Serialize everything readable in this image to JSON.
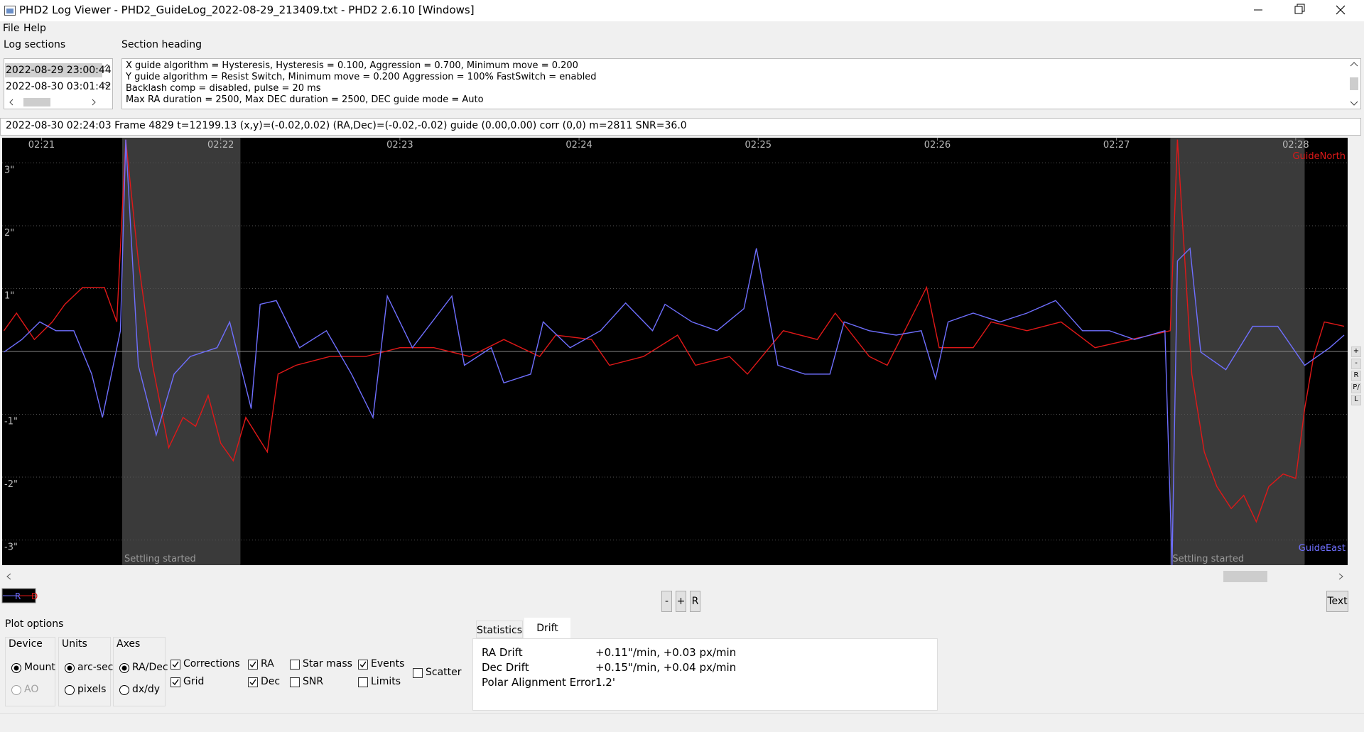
{
  "window": {
    "title": "PHD2 Log Viewer - PHD2_GuideLog_2022-08-29_213409.txt - PHD2 2.6.10 [Windows]"
  },
  "menu": [
    "File",
    "Help"
  ],
  "log_sections": {
    "label": "Log sections",
    "items": [
      "2022-08-29 23:00:44",
      "2022-08-30 03:01:42"
    ],
    "selected": 0
  },
  "section_heading": {
    "label": "Section heading",
    "lines": [
      "X guide algorithm = Hysteresis, Hysteresis = 0.100, Aggression = 0.700, Minimum move = 0.200",
      "Y guide algorithm = Resist Switch, Minimum move = 0.200 Aggression = 100% FastSwitch = enabled",
      "Backlash comp = disabled, pulse = 20 ms",
      "Max RA duration = 2500, Max DEC duration = 2500, DEC guide mode = Auto"
    ]
  },
  "status": "2022-08-30 02:24:03 Frame 4829 t=12199.13 (x,y)=(-0.02,0.02) (RA,Dec)=(-0.02,-0.02) guide (0.00,0.00) corr (0,0) m=2811 SNR=36.0",
  "chart_data": {
    "type": "line",
    "xlim": [
      -0.22,
      7.29
    ],
    "ylim": [
      -3.4,
      3.4
    ],
    "xticks": [
      {
        "value": 0,
        "label": "02:21"
      },
      {
        "value": 1,
        "label": "02:22"
      },
      {
        "value": 2,
        "label": "02:23"
      },
      {
        "value": 3,
        "label": "02:24"
      },
      {
        "value": 4,
        "label": "02:25"
      },
      {
        "value": 5,
        "label": "02:26"
      },
      {
        "value": 6,
        "label": "02:27"
      },
      {
        "value": 7,
        "label": "02:28"
      }
    ],
    "yticks": [
      {
        "value": 3,
        "label": "3\""
      },
      {
        "value": 2,
        "label": "2\""
      },
      {
        "value": 1,
        "label": "1\""
      },
      {
        "value": -1,
        "label": "-1\""
      },
      {
        "value": -2,
        "label": "-2\""
      },
      {
        "value": -3,
        "label": "-3\""
      }
    ],
    "grid": true,
    "corner_labels": {
      "top": "GuideNorth",
      "bottom": "GuideEast"
    },
    "regions": [
      {
        "start": 0.45,
        "end": 1.11,
        "label": "Settling started"
      },
      {
        "start": 6.3,
        "end": 7.05,
        "label": "Settling started"
      }
    ],
    "series": [
      {
        "name": "R",
        "color": "#6f6fff",
        "x": [
          -0.21,
          -0.11,
          -0.01,
          0.08,
          0.18,
          0.28,
          0.34,
          0.44,
          0.47,
          0.54,
          0.64,
          0.74,
          0.83,
          0.98,
          1.05,
          1.17,
          1.22,
          1.31,
          1.44,
          1.59,
          1.73,
          1.85,
          1.93,
          2.07,
          2.29,
          2.36,
          2.51,
          2.58,
          2.73,
          2.8,
          2.95,
          3.12,
          3.26,
          3.41,
          3.48,
          3.63,
          3.77,
          3.92,
          3.99,
          4.11,
          4.26,
          4.4,
          4.48,
          4.62,
          4.77,
          4.91,
          4.99,
          5.06,
          5.2,
          5.35,
          5.5,
          5.66,
          5.81,
          5.96,
          6.1,
          6.27,
          6.31,
          6.34,
          6.41,
          6.47,
          6.61,
          6.76,
          6.9,
          7.05,
          7.19,
          7.27
        ],
        "values": [
          -0.01,
          0.19,
          0.47,
          0.33,
          0.33,
          -0.36,
          -1.05,
          0.33,
          3.37,
          -0.22,
          -1.33,
          -0.36,
          -0.08,
          0.06,
          0.47,
          -0.91,
          0.75,
          0.81,
          0.06,
          0.33,
          -0.36,
          -1.05,
          0.88,
          0.06,
          0.88,
          -0.22,
          0.06,
          -0.5,
          -0.36,
          0.47,
          0.06,
          0.33,
          0.77,
          0.33,
          0.75,
          0.47,
          0.33,
          0.68,
          1.64,
          -0.22,
          -0.36,
          -0.36,
          0.47,
          0.33,
          0.26,
          0.33,
          -0.43,
          0.47,
          0.61,
          0.47,
          0.61,
          0.81,
          0.33,
          0.33,
          0.19,
          0.33,
          -3.4,
          1.44,
          1.64,
          -0.01,
          -0.29,
          0.4,
          0.4,
          -0.22,
          0.06,
          0.26
        ]
      },
      {
        "name": "D",
        "color": "#e01818",
        "x": [
          -0.21,
          -0.14,
          -0.04,
          0.06,
          0.13,
          0.23,
          0.35,
          0.42,
          0.47,
          0.54,
          0.62,
          0.71,
          0.79,
          0.86,
          0.93,
          1.0,
          1.07,
          1.14,
          1.26,
          1.32,
          1.42,
          1.61,
          1.81,
          2.0,
          2.19,
          2.39,
          2.58,
          2.78,
          2.87,
          3.07,
          3.17,
          3.36,
          3.55,
          3.65,
          3.84,
          3.94,
          4.14,
          4.33,
          4.43,
          4.62,
          4.72,
          4.94,
          5.01,
          5.2,
          5.3,
          5.5,
          5.69,
          5.88,
          6.08,
          6.3,
          6.34,
          6.42,
          6.49,
          6.56,
          6.64,
          6.71,
          6.78,
          6.85,
          6.93,
          7.0,
          7.05,
          7.1,
          7.16,
          7.27
        ],
        "values": [
          0.33,
          0.61,
          0.19,
          0.47,
          0.75,
          1.02,
          1.02,
          0.47,
          3.37,
          1.44,
          -0.22,
          -1.53,
          -1.05,
          -1.19,
          -0.7,
          -1.46,
          -1.74,
          -1.05,
          -1.6,
          -0.36,
          -0.22,
          -0.08,
          -0.08,
          0.06,
          0.06,
          -0.08,
          0.19,
          -0.08,
          0.26,
          0.19,
          -0.22,
          -0.08,
          0.26,
          -0.22,
          -0.08,
          -0.36,
          0.33,
          0.19,
          0.61,
          -0.08,
          -0.22,
          1.02,
          0.06,
          0.06,
          0.47,
          0.33,
          0.47,
          0.06,
          0.19,
          0.33,
          3.37,
          -0.36,
          -1.6,
          -2.15,
          -2.5,
          -2.29,
          -2.71,
          -2.15,
          -1.95,
          -2.02,
          -0.91,
          -0.08,
          0.47,
          0.4
        ]
      }
    ]
  },
  "side_buttons": [
    "+",
    "-",
    "R",
    "P/",
    "L"
  ],
  "zoom_buttons": [
    "-",
    "+",
    "R"
  ],
  "text_button": "Text",
  "plot_options": {
    "label": "Plot options",
    "groups": [
      {
        "label": "Device",
        "options": [
          {
            "label": "Mount",
            "selected": true
          },
          {
            "label": "AO",
            "selected": false,
            "disabled": true
          }
        ]
      },
      {
        "label": "Units",
        "options": [
          {
            "label": "arc-sec",
            "selected": true
          },
          {
            "label": "pixels",
            "selected": false
          }
        ]
      },
      {
        "label": "Axes",
        "options": [
          {
            "label": "RA/Dec",
            "selected": true
          },
          {
            "label": "dx/dy",
            "selected": false
          }
        ]
      }
    ],
    "checkboxes": [
      {
        "label": "Corrections",
        "checked": true
      },
      {
        "label": "Grid",
        "checked": true
      },
      {
        "label": "RA",
        "checked": true
      },
      {
        "label": "Dec",
        "checked": true
      },
      {
        "label": "Star mass",
        "checked": false
      },
      {
        "label": "SNR",
        "checked": false
      },
      {
        "label": "Events",
        "checked": true
      },
      {
        "label": "Limits",
        "checked": false
      },
      {
        "label": "Scatter",
        "checked": false
      }
    ]
  },
  "tabs": [
    "Statistics",
    "Drift"
  ],
  "active_tab": 1,
  "drift": [
    {
      "label": "RA Drift",
      "value": "+0.11\"/min, +0.03 px/min"
    },
    {
      "label": "Dec Drift",
      "value": "+0.15\"/min, +0.04 px/min"
    },
    {
      "label": "Polar Alignment Error",
      "value": "1.2'"
    }
  ]
}
